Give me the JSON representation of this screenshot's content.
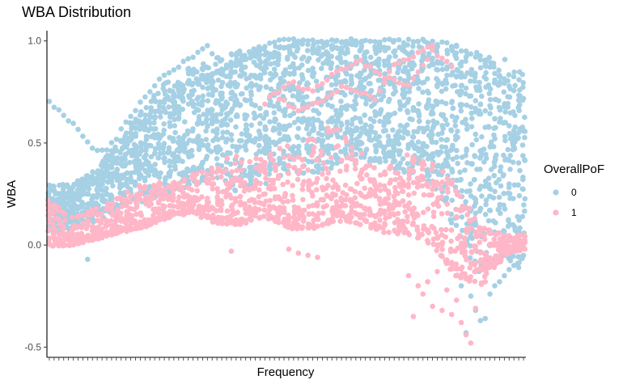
{
  "chart_data": {
    "type": "scatter",
    "title": "WBA Distribution",
    "xlabel": "Frequency",
    "ylabel": "WBA",
    "ylim": [
      -0.55,
      1.05
    ],
    "yticks": [
      -0.5,
      0.0,
      0.5,
      1.0
    ],
    "ytick_labels": [
      "-0.5",
      "0.0",
      "0.5",
      "1.0"
    ],
    "x_category_count": 100,
    "grid": false,
    "legend": {
      "title": "OverallPoF",
      "placement": "right",
      "entries": [
        "0",
        "1"
      ]
    },
    "series": [
      {
        "name": "0",
        "color": "#A6D0E4",
        "bands": [
          {
            "x": 0,
            "low": 0.05,
            "high": 0.3
          },
          {
            "x": 5,
            "low": 0.08,
            "high": 0.3
          },
          {
            "x": 10,
            "low": 0.12,
            "high": 0.38
          },
          {
            "x": 15,
            "low": 0.18,
            "high": 0.55
          },
          {
            "x": 20,
            "low": 0.22,
            "high": 0.7
          },
          {
            "x": 25,
            "low": 0.25,
            "high": 0.82
          },
          {
            "x": 30,
            "low": 0.3,
            "high": 0.88
          },
          {
            "x": 35,
            "low": 0.32,
            "high": 0.92
          },
          {
            "x": 40,
            "low": 0.25,
            "high": 0.95
          },
          {
            "x": 45,
            "low": 0.3,
            "high": 0.98
          },
          {
            "x": 50,
            "low": 0.35,
            "high": 1.0
          },
          {
            "x": 55,
            "low": 0.35,
            "high": 1.0
          },
          {
            "x": 60,
            "low": 0.38,
            "high": 1.0
          },
          {
            "x": 65,
            "low": 0.4,
            "high": 1.0
          },
          {
            "x": 70,
            "low": 0.38,
            "high": 1.0
          },
          {
            "x": 75,
            "low": 0.35,
            "high": 1.0
          },
          {
            "x": 80,
            "low": 0.3,
            "high": 1.0
          },
          {
            "x": 85,
            "low": 0.05,
            "high": 0.98
          },
          {
            "x": 90,
            "low": -0.15,
            "high": 0.95
          },
          {
            "x": 95,
            "low": -0.08,
            "high": 0.92
          },
          {
            "x": 99,
            "low": -0.1,
            "high": 0.85
          }
        ],
        "curves": [
          [
            [
              0,
              0.7
            ],
            [
              3,
              0.64
            ],
            [
              6,
              0.56
            ],
            [
              9,
              0.48
            ],
            [
              12,
              0.46
            ],
            [
              15,
              0.56
            ],
            [
              18,
              0.66
            ],
            [
              21,
              0.76
            ],
            [
              24,
              0.84
            ],
            [
              27,
              0.88
            ],
            [
              30,
              0.93
            ],
            [
              33,
              0.97
            ],
            [
              36,
              0.9
            ],
            [
              39,
              0.87
            ],
            [
              42,
              0.93
            ],
            [
              45,
              0.98
            ],
            [
              48,
              1.0
            ],
            [
              55,
              1.0
            ],
            [
              65,
              1.0
            ],
            [
              72,
              1.0
            ],
            [
              78,
              1.0
            ],
            [
              84,
              0.98
            ],
            [
              88,
              0.94
            ],
            [
              92,
              0.87
            ],
            [
              96,
              0.78
            ],
            [
              99,
              0.72
            ]
          ],
          [
            [
              15,
              0.5
            ],
            [
              20,
              0.62
            ],
            [
              25,
              0.72
            ],
            [
              30,
              0.8
            ],
            [
              35,
              0.86
            ],
            [
              40,
              0.9
            ],
            [
              45,
              0.94
            ],
            [
              50,
              0.97
            ]
          ],
          [
            [
              80,
              0.92
            ],
            [
              84,
              0.84
            ],
            [
              88,
              0.74
            ],
            [
              92,
              0.64
            ],
            [
              96,
              0.58
            ],
            [
              99,
              0.55
            ]
          ]
        ],
        "outliers": [
          [
            8,
            -0.07
          ],
          [
            86,
            -0.2
          ],
          [
            88,
            -0.25
          ],
          [
            89,
            -0.32
          ],
          [
            90,
            -0.37
          ],
          [
            91,
            -0.36
          ],
          [
            92,
            -0.24
          ],
          [
            93,
            -0.2
          ],
          [
            94,
            -0.18
          ],
          [
            96,
            -0.12
          ],
          [
            97,
            -0.1
          ],
          [
            98,
            -0.11
          ],
          [
            87,
            -0.43
          ],
          [
            99,
            -0.05
          ],
          [
            95,
            -0.15
          ]
        ]
      },
      {
        "name": "1",
        "color": "#FFB6C6",
        "bands": [
          {
            "x": 0,
            "low": -0.01,
            "high": 0.22
          },
          {
            "x": 5,
            "low": 0.0,
            "high": 0.14
          },
          {
            "x": 10,
            "low": 0.03,
            "high": 0.18
          },
          {
            "x": 15,
            "low": 0.06,
            "high": 0.25
          },
          {
            "x": 20,
            "low": 0.09,
            "high": 0.32
          },
          {
            "x": 25,
            "low": 0.14,
            "high": 0.3
          },
          {
            "x": 30,
            "low": 0.16,
            "high": 0.35
          },
          {
            "x": 35,
            "low": 0.1,
            "high": 0.42
          },
          {
            "x": 40,
            "low": 0.1,
            "high": 0.45
          },
          {
            "x": 45,
            "low": 0.14,
            "high": 0.45
          },
          {
            "x": 50,
            "low": 0.08,
            "high": 0.5
          },
          {
            "x": 55,
            "low": 0.08,
            "high": 0.55
          },
          {
            "x": 60,
            "low": 0.12,
            "high": 0.6
          },
          {
            "x": 65,
            "low": 0.1,
            "high": 0.45
          },
          {
            "x": 70,
            "low": 0.06,
            "high": 0.38
          },
          {
            "x": 75,
            "low": 0.05,
            "high": 0.45
          },
          {
            "x": 80,
            "low": 0.0,
            "high": 0.4
          },
          {
            "x": 85,
            "low": -0.15,
            "high": 0.3
          },
          {
            "x": 90,
            "low": -0.2,
            "high": 0.1
          },
          {
            "x": 95,
            "low": -0.05,
            "high": 0.05
          },
          {
            "x": 99,
            "low": -0.02,
            "high": 0.05
          }
        ],
        "curves": [
          [
            [
              45,
              0.7
            ],
            [
              50,
              0.8
            ],
            [
              55,
              0.75
            ],
            [
              60,
              0.85
            ],
            [
              65,
              0.9
            ],
            [
              70,
              0.82
            ],
            [
              75,
              0.78
            ],
            [
              80,
              0.95
            ],
            [
              84,
              0.88
            ]
          ],
          [
            [
              48,
              0.72
            ],
            [
              52,
              0.66
            ],
            [
              56,
              0.7
            ],
            [
              62,
              0.78
            ],
            [
              68,
              0.72
            ],
            [
              72,
              0.88
            ],
            [
              76,
              0.92
            ],
            [
              80,
              0.98
            ]
          ],
          [
            [
              5,
              0.02
            ],
            [
              10,
              0.04
            ],
            [
              15,
              0.07
            ],
            [
              20,
              0.1
            ],
            [
              25,
              0.14
            ],
            [
              30,
              0.17
            ],
            [
              35,
              0.12
            ],
            [
              40,
              0.13
            ]
          ]
        ],
        "outliers": [
          [
            38,
            -0.03
          ],
          [
            50,
            -0.02
          ],
          [
            52,
            -0.04
          ],
          [
            54,
            -0.05
          ],
          [
            56,
            -0.06
          ],
          [
            75,
            -0.15
          ],
          [
            77,
            -0.2
          ],
          [
            78,
            -0.24
          ],
          [
            79,
            -0.18
          ],
          [
            80,
            -0.3
          ],
          [
            82,
            -0.32
          ],
          [
            84,
            -0.34
          ],
          [
            86,
            -0.38
          ],
          [
            87,
            -0.44
          ],
          [
            88,
            -0.48
          ],
          [
            76,
            -0.35
          ],
          [
            83,
            -0.22
          ],
          [
            85,
            -0.27
          ],
          [
            89,
            -0.31
          ],
          [
            91,
            -0.18
          ],
          [
            93,
            -0.08
          ],
          [
            81,
            -0.13
          ]
        ]
      }
    ]
  }
}
